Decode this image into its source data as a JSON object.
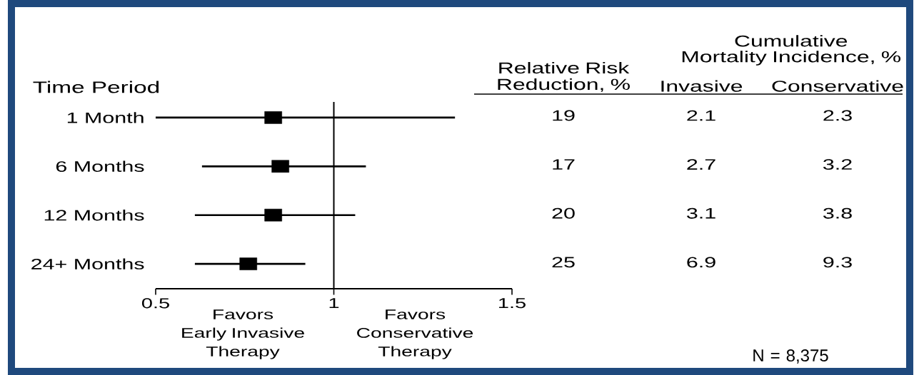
{
  "chart_data": [
    {
      "type": "scatter",
      "ylabel": "Time Period",
      "categories": [
        "1 Month",
        "6 Months",
        "12 Months",
        "24+ Months"
      ],
      "orientation": "horizontal",
      "values": [
        0.83,
        0.85,
        0.83,
        0.76
      ],
      "errors": [
        [
          0.5,
          1.34
        ],
        [
          0.63,
          1.09
        ],
        [
          0.61,
          1.06
        ],
        [
          0.61,
          0.92
        ]
      ],
      "color": "#000000",
      "marker": "square",
      "xlim": [
        0.5,
        1.5
      ],
      "xticks": [
        0.5,
        1,
        1.5
      ],
      "ref_lines": [
        {
          "axis": "x",
          "value": 1
        }
      ],
      "annotations": [
        "Favors\nEarly Invasive\nTherapy",
        "Favors\nConservative\nTherapy"
      ]
    },
    {
      "type": "other",
      "annotations": [
        "Relative Risk Reduction, %",
        "Cumulative\nMortality Incidence, %",
        "Invasive",
        "Conservative",
        "19",
        "2.1",
        "2.3",
        "17",
        "2.7",
        "3.2",
        "20",
        "3.1",
        "3.8",
        "25",
        "6.9",
        "9.3",
        "N = 8,375"
      ]
    }
  ]
}
